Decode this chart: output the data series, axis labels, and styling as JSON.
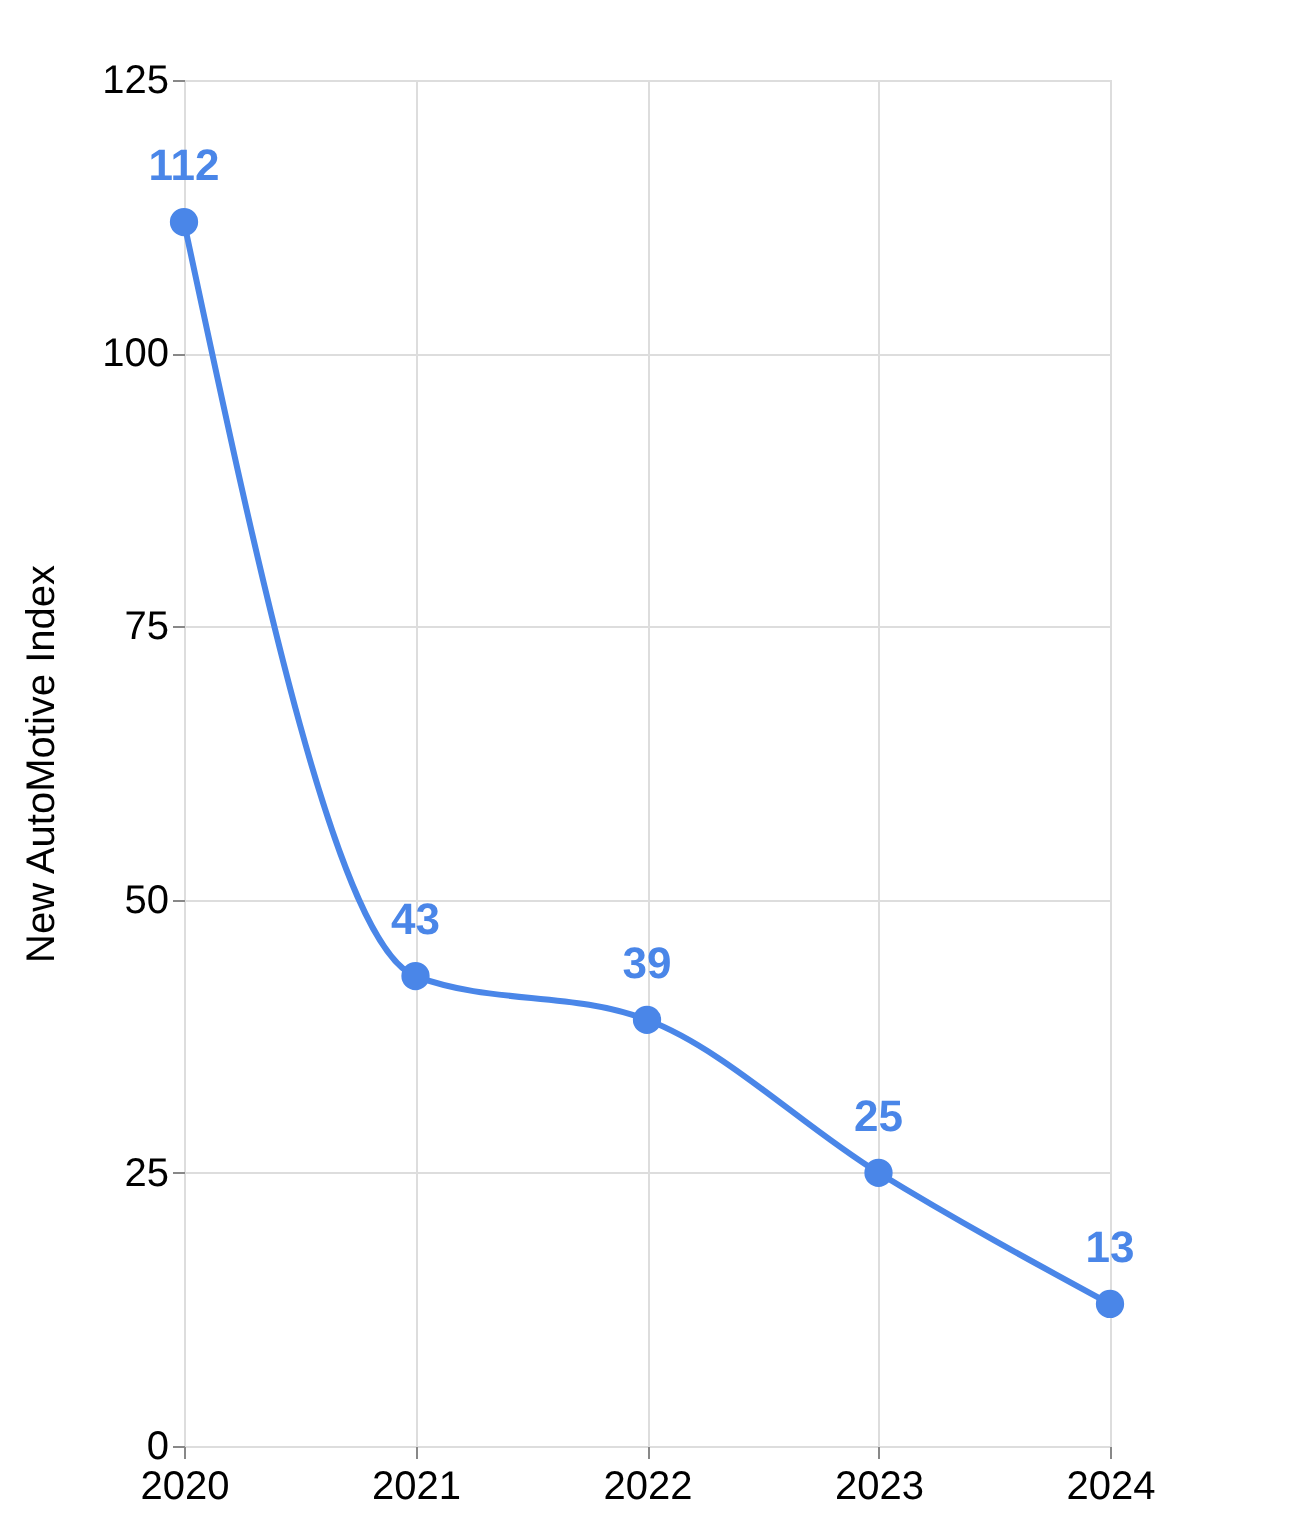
{
  "chart_data": {
    "type": "line",
    "ylabel": "New AutoMotive Index",
    "x": [
      2020,
      2021,
      2022,
      2023,
      2024
    ],
    "series": [
      {
        "color": "#4a86e8",
        "values": [
          112,
          43,
          39,
          25,
          13
        ]
      }
    ],
    "xlim": [
      2020,
      2024
    ],
    "xticks": [
      2020,
      2021,
      2022,
      2023,
      2024
    ],
    "ylim": [
      0,
      125
    ],
    "yticks": [
      0,
      25,
      50,
      75,
      100,
      125
    ],
    "grid": true,
    "marker": "circle",
    "line_style": "solid",
    "data_labels": true
  }
}
